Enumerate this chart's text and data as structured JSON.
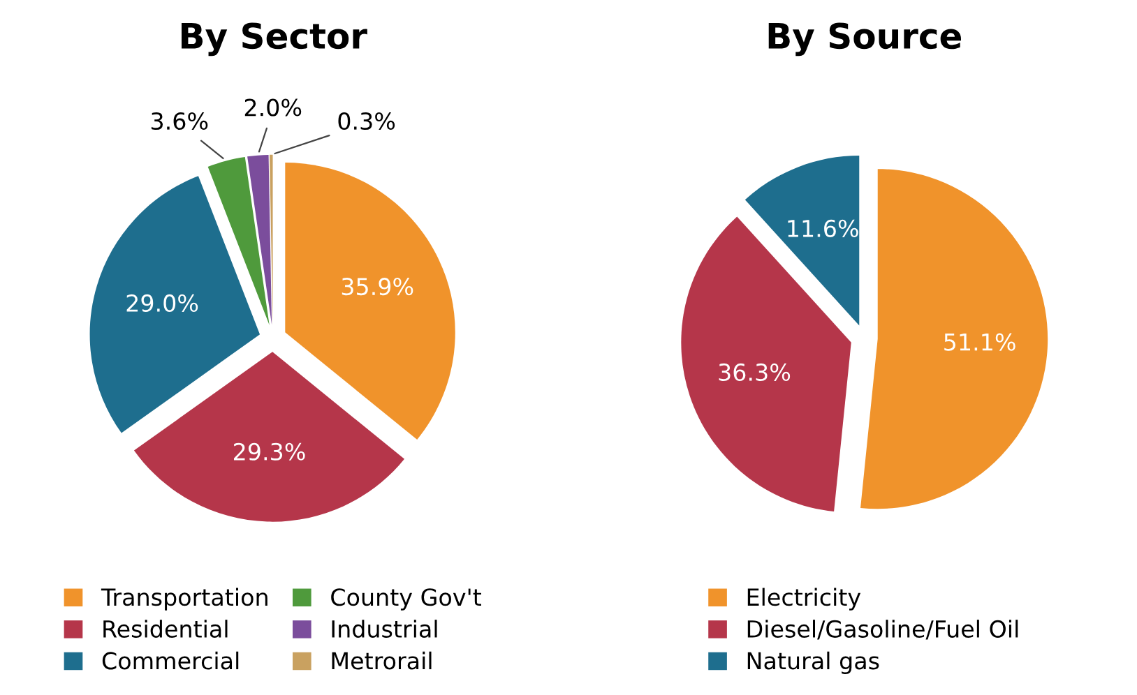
{
  "chart_data": [
    {
      "type": "pie",
      "title": "By Sector",
      "categories": [
        "Transportation",
        "Residential",
        "Commercial",
        "County Gov't",
        "Industrial",
        "Metrorail"
      ],
      "values": [
        35.9,
        29.3,
        29.0,
        3.6,
        2.0,
        0.3
      ],
      "colors": [
        "#f0932b",
        "#b5364a",
        "#1e6e8e",
        "#4f9a3c",
        "#7b4d9c",
        "#c9a160"
      ],
      "value_labels": [
        "35.9%",
        "29.3%",
        "29.0%",
        "3.6%",
        "2.0%",
        "0.3%"
      ],
      "legend": "bottom"
    },
    {
      "type": "pie",
      "title": "By Source",
      "categories": [
        "Electricity",
        "Diesel/Gasoline/Fuel Oil",
        "Natural gas"
      ],
      "values": [
        51.1,
        36.3,
        11.6
      ],
      "colors": [
        "#f0932b",
        "#b5364a",
        "#1e6e8e"
      ],
      "value_labels": [
        "51.1%",
        "36.3%",
        "11.6%"
      ],
      "legend": "bottom"
    }
  ]
}
